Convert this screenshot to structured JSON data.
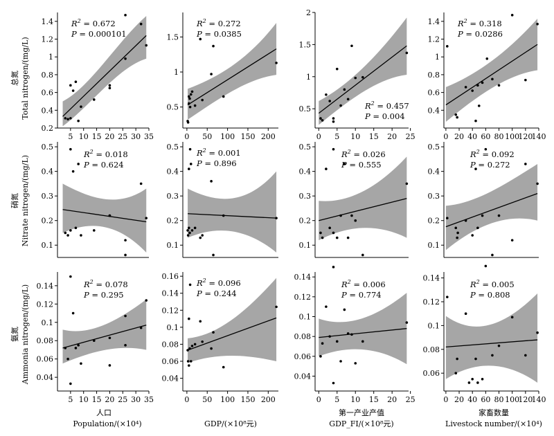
{
  "row_labels": [
    {
      "cn": "总氮",
      "en": "Total nitrogen/(mg/L)"
    },
    {
      "cn": "硝氮",
      "en": "Nitrate nitrogen/(mg/L)"
    },
    {
      "cn": "氨氮",
      "en": "Ammonia nitrogen/(mg/L)"
    }
  ],
  "col_labels": [
    {
      "cn": "人口",
      "en": "Population/(×10⁴)"
    },
    {
      "cn": "",
      "en": "GDP/(×10⁸元)"
    },
    {
      "cn": "第一产业产值",
      "en": "GDP_FI/(×10⁸元)"
    },
    {
      "cn": "家畜数量",
      "en": "Livestock number/(×10⁴)"
    }
  ],
  "colors": {
    "band": "#a6a6a6",
    "line": "#000000",
    "point": "#000000"
  },
  "chart_data": [
    {
      "type": "scatter",
      "row": 0,
      "col": 0,
      "xlim": [
        0,
        35
      ],
      "ylim": [
        0.2,
        1.5
      ],
      "xticks": [
        5,
        10,
        15,
        20,
        25,
        30,
        35
      ],
      "yticks": [
        0.2,
        0.4,
        0.6,
        0.8,
        1.0,
        1.2,
        1.4
      ],
      "r2": "0.672",
      "p": "0.000101",
      "stat_pos": "top-left",
      "x": [
        3,
        4,
        5,
        5,
        6,
        7,
        8,
        9,
        14,
        20,
        20,
        26,
        26,
        32,
        34
      ],
      "y": [
        0.31,
        0.3,
        0.68,
        0.31,
        0.62,
        0.72,
        0.28,
        0.44,
        0.52,
        0.65,
        0.68,
        0.98,
        1.47,
        1.37,
        1.13
      ],
      "fit": {
        "x0": 2,
        "y0": 0.33,
        "x1": 34,
        "y1": 1.24
      },
      "band": {
        "lower": [
          0.22,
          0.45,
          0.88,
          0.98
        ],
        "upper": [
          0.5,
          0.66,
          1.18,
          1.46
        ]
      }
    },
    {
      "type": "scatter",
      "row": 0,
      "col": 1,
      "xlim": [
        -10,
        225
      ],
      "ylim": [
        0.2,
        1.85
      ],
      "xticks": [
        0,
        50,
        100,
        150,
        200
      ],
      "yticks": [
        0.5,
        1.0,
        1.5
      ],
      "r2": "0.272",
      "p": "0.0385",
      "stat_pos": "top-left",
      "x": [
        2,
        3,
        5,
        5,
        7,
        8,
        10,
        13,
        20,
        33,
        38,
        60,
        65,
        90,
        220
      ],
      "y": [
        0.3,
        0.28,
        0.55,
        0.65,
        0.62,
        0.5,
        0.68,
        0.72,
        0.52,
        1.47,
        0.6,
        0.97,
        1.37,
        0.65,
        1.13
      ],
      "fit": {
        "x0": 2,
        "y0": 0.53,
        "x1": 220,
        "y1": 1.33
      },
      "band": {
        "lower": [
          0.32,
          0.6,
          0.9,
          0.96
        ],
        "upper": [
          0.76,
          0.92,
          1.15,
          1.7
        ]
      }
    },
    {
      "type": "scatter",
      "row": 0,
      "col": 2,
      "xlim": [
        -1,
        24.5
      ],
      "ylim": [
        0.2,
        2.0
      ],
      "xticks": [
        0,
        5,
        10,
        15,
        20,
        25
      ],
      "yticks": [
        0.5,
        1.0,
        1.5,
        2.0
      ],
      "r2": "0.457",
      "p": "0.004",
      "stat_pos": "bottom-right",
      "x": [
        0.5,
        1,
        2,
        3,
        4,
        4,
        5,
        6,
        7,
        8,
        9,
        10,
        12,
        24
      ],
      "y": [
        0.35,
        0.32,
        0.72,
        0.62,
        0.3,
        0.35,
        1.12,
        0.55,
        0.8,
        0.65,
        1.48,
        0.98,
        0.99,
        1.37
      ],
      "fit": {
        "x0": 0,
        "y0": 0.43,
        "x1": 24,
        "y1": 1.48
      },
      "band": {
        "lower": [
          0.25,
          0.62,
          0.97,
          1.03
        ],
        "upper": [
          0.62,
          0.86,
          1.3,
          1.92
        ]
      }
    },
    {
      "type": "scatter",
      "row": 0,
      "col": 3,
      "xlim": [
        -3,
        140
      ],
      "ylim": [
        0.2,
        1.5
      ],
      "xticks": [
        0,
        20,
        40,
        60,
        80,
        100,
        120,
        140
      ],
      "yticks": [
        0.4,
        0.6,
        0.8,
        1.0,
        1.2,
        1.4
      ],
      "r2": "0.318",
      "p": "0.0286",
      "stat_pos": "top-left",
      "x": [
        2,
        15,
        17,
        30,
        40,
        45,
        48,
        50,
        55,
        62,
        70,
        80,
        100,
        120,
        138
      ],
      "y": [
        1.12,
        0.35,
        0.32,
        0.66,
        0.62,
        0.28,
        0.68,
        0.45,
        0.71,
        0.98,
        0.75,
        0.68,
        1.47,
        0.74,
        1.37
      ],
      "fit": {
        "x0": 0,
        "y0": 0.46,
        "x1": 138,
        "y1": 1.14
      },
      "band": {
        "lower": [
          0.27,
          0.55,
          0.8,
          0.85
        ],
        "upper": [
          0.66,
          0.8,
          1.04,
          1.43
        ]
      }
    },
    {
      "type": "scatter",
      "row": 1,
      "col": 0,
      "xlim": [
        0,
        35
      ],
      "ylim": [
        0.05,
        0.52
      ],
      "xticks": [],
      "yticks": [
        0.1,
        0.2,
        0.3,
        0.4,
        0.5
      ],
      "r2": "0.018",
      "p": "0.624",
      "stat_pos": "top-center",
      "x": [
        3,
        4,
        5,
        5,
        6,
        7,
        8,
        9,
        14,
        20,
        20,
        26,
        26,
        32,
        34
      ],
      "y": [
        0.15,
        0.14,
        0.49,
        0.16,
        0.4,
        0.17,
        0.43,
        0.14,
        0.16,
        0.22,
        0.22,
        0.12,
        0.06,
        0.35,
        0.21
      ],
      "fit": {
        "x0": 2,
        "y0": 0.245,
        "x1": 34,
        "y1": 0.195
      },
      "band": {
        "lower": [
          0.15,
          0.2,
          0.19,
          0.07
        ],
        "upper": [
          0.35,
          0.29,
          0.25,
          0.33
        ]
      }
    },
    {
      "type": "scatter",
      "row": 1,
      "col": 1,
      "xlim": [
        -10,
        225
      ],
      "ylim": [
        0.05,
        0.52
      ],
      "xticks": [],
      "yticks": [
        0.1,
        0.2,
        0.3,
        0.4,
        0.5
      ],
      "r2": "0.001",
      "p": "0.896",
      "stat_pos": "top-left",
      "x": [
        2,
        3,
        5,
        5,
        7,
        8,
        10,
        13,
        20,
        33,
        38,
        60,
        65,
        90,
        220
      ],
      "y": [
        0.16,
        0.14,
        0.41,
        0.17,
        0.15,
        0.49,
        0.43,
        0.16,
        0.17,
        0.13,
        0.14,
        0.36,
        0.06,
        0.22,
        0.21
      ],
      "fit": {
        "x0": 2,
        "y0": 0.228,
        "x1": 220,
        "y1": 0.21
      },
      "band": {
        "lower": [
          0.13,
          0.18,
          0.17,
          0.07
        ],
        "upper": [
          0.33,
          0.27,
          0.26,
          0.4
        ]
      }
    },
    {
      "type": "scatter",
      "row": 1,
      "col": 2,
      "xlim": [
        -1,
        24.5
      ],
      "ylim": [
        0.05,
        0.52
      ],
      "xticks": [],
      "yticks": [
        0.1,
        0.2,
        0.3,
        0.4,
        0.5
      ],
      "r2": "0.026",
      "p": "0.555",
      "stat_pos": "top-center",
      "x": [
        0.5,
        1,
        2,
        3,
        4,
        4,
        5,
        6,
        7,
        8,
        9,
        10,
        12,
        24
      ],
      "y": [
        0.15,
        0.13,
        0.41,
        0.17,
        0.15,
        0.49,
        0.13,
        0.22,
        0.43,
        0.13,
        0.22,
        0.2,
        0.06,
        0.35
      ],
      "fit": {
        "x0": 0,
        "y0": 0.2,
        "x1": 24,
        "y1": 0.29
      },
      "band": {
        "lower": [
          0.12,
          0.18,
          0.19,
          0.13
        ],
        "upper": [
          0.28,
          0.27,
          0.33,
          0.46
        ]
      }
    },
    {
      "type": "scatter",
      "row": 1,
      "col": 3,
      "xlim": [
        -3,
        140
      ],
      "ylim": [
        0.05,
        0.52
      ],
      "xticks": [],
      "yticks": [
        0.1,
        0.2,
        0.3,
        0.4,
        0.5
      ],
      "r2": "0.092",
      "p": "0.272",
      "stat_pos": "top-center",
      "x": [
        2,
        15,
        17,
        18,
        30,
        40,
        45,
        48,
        55,
        60,
        70,
        80,
        100,
        120,
        138
      ],
      "y": [
        0.21,
        0.17,
        0.13,
        0.15,
        0.2,
        0.14,
        0.41,
        0.17,
        0.22,
        0.49,
        0.06,
        0.22,
        0.12,
        0.43,
        0.35
      ],
      "fit": {
        "x0": 0,
        "y0": 0.175,
        "x1": 138,
        "y1": 0.31
      },
      "band": {
        "lower": [
          0.08,
          0.18,
          0.23,
          0.2
        ],
        "upper": [
          0.26,
          0.27,
          0.35,
          0.43
        ]
      }
    },
    {
      "type": "scatter",
      "row": 2,
      "col": 0,
      "xlim": [
        0,
        35
      ],
      "ylim": [
        0.025,
        0.155
      ],
      "xticks": [
        5,
        10,
        15,
        20,
        25,
        30,
        35
      ],
      "yticks": [
        0.04,
        0.06,
        0.08,
        0.1,
        0.12,
        0.14
      ],
      "r2": "0.078",
      "p": "0.295",
      "stat_pos": "top-center",
      "x": [
        3,
        4,
        5,
        5,
        6,
        7,
        8,
        9,
        14,
        20,
        20,
        26,
        26,
        32,
        34
      ],
      "y": [
        0.072,
        0.06,
        0.15,
        0.033,
        0.11,
        0.072,
        0.075,
        0.055,
        0.08,
        0.083,
        0.053,
        0.075,
        0.107,
        0.094,
        0.124
      ],
      "fit": {
        "x0": 2,
        "y0": 0.072,
        "x1": 34,
        "y1": 0.097
      },
      "band": {
        "lower": [
          0.055,
          0.068,
          0.076,
          0.07
        ],
        "upper": [
          0.092,
          0.085,
          0.102,
          0.125
        ]
      }
    },
    {
      "type": "scatter",
      "row": 2,
      "col": 1,
      "xlim": [
        -10,
        225
      ],
      "ylim": [
        0.025,
        0.165
      ],
      "xticks": [
        0,
        50,
        100,
        150,
        200
      ],
      "yticks": [
        0.04,
        0.06,
        0.08,
        0.1,
        0.12,
        0.14,
        0.16
      ],
      "r2": "0.096",
      "p": "0.244",
      "stat_pos": "top-left",
      "x": [
        2,
        3,
        5,
        5,
        7,
        8,
        10,
        13,
        20,
        33,
        38,
        60,
        65,
        90,
        220
      ],
      "y": [
        0.073,
        0.06,
        0.055,
        0.11,
        0.075,
        0.15,
        0.06,
        0.078,
        0.08,
        0.107,
        0.083,
        0.075,
        0.094,
        0.053,
        0.124
      ],
      "fit": {
        "x0": 2,
        "y0": 0.073,
        "x1": 220,
        "y1": 0.111
      },
      "band": {
        "lower": [
          0.058,
          0.07,
          0.068,
          0.06
        ],
        "upper": [
          0.087,
          0.09,
          0.118,
          0.158
        ]
      }
    },
    {
      "type": "scatter",
      "row": 2,
      "col": 2,
      "xlim": [
        -1,
        24.5
      ],
      "ylim": [
        0.025,
        0.145
      ],
      "xticks": [
        0,
        5,
        10,
        15,
        20,
        25
      ],
      "yticks": [
        0.04,
        0.06,
        0.08,
        0.1,
        0.12,
        0.14
      ],
      "r2": "0.006",
      "p": "0.774",
      "stat_pos": "top-center",
      "x": [
        0.5,
        1,
        2,
        3,
        4,
        4,
        5,
        6,
        7,
        8,
        9,
        10,
        12,
        24
      ],
      "y": [
        0.06,
        0.073,
        0.11,
        0.08,
        0.15,
        0.033,
        0.075,
        0.055,
        0.107,
        0.083,
        0.082,
        0.053,
        0.075,
        0.094
      ],
      "fit": {
        "x0": 0,
        "y0": 0.079,
        "x1": 24,
        "y1": 0.088
      },
      "band": {
        "lower": [
          0.06,
          0.071,
          0.07,
          0.052
        ],
        "upper": [
          0.098,
          0.088,
          0.1,
          0.124
        ]
      }
    },
    {
      "type": "scatter",
      "row": 2,
      "col": 3,
      "xlim": [
        -3,
        140
      ],
      "ylim": [
        0.045,
        0.145
      ],
      "xticks": [
        0,
        20,
        40,
        60,
        80,
        100,
        120,
        140
      ],
      "yticks": [
        0.06,
        0.08,
        0.1,
        0.12,
        0.14
      ],
      "r2": "0.005",
      "p": "0.808",
      "stat_pos": "top-center",
      "x": [
        2,
        15,
        17,
        30,
        35,
        40,
        45,
        48,
        55,
        60,
        70,
        80,
        100,
        120,
        138
      ],
      "y": [
        0.124,
        0.06,
        0.072,
        0.11,
        0.052,
        0.055,
        0.072,
        0.052,
        0.055,
        0.15,
        0.075,
        0.083,
        0.107,
        0.075,
        0.094
      ],
      "fit": {
        "x0": 0,
        "y0": 0.082,
        "x1": 138,
        "y1": 0.088
      },
      "band": {
        "lower": [
          0.055,
          0.071,
          0.07,
          0.052
        ],
        "upper": [
          0.108,
          0.09,
          0.101,
          0.127
        ]
      }
    }
  ]
}
